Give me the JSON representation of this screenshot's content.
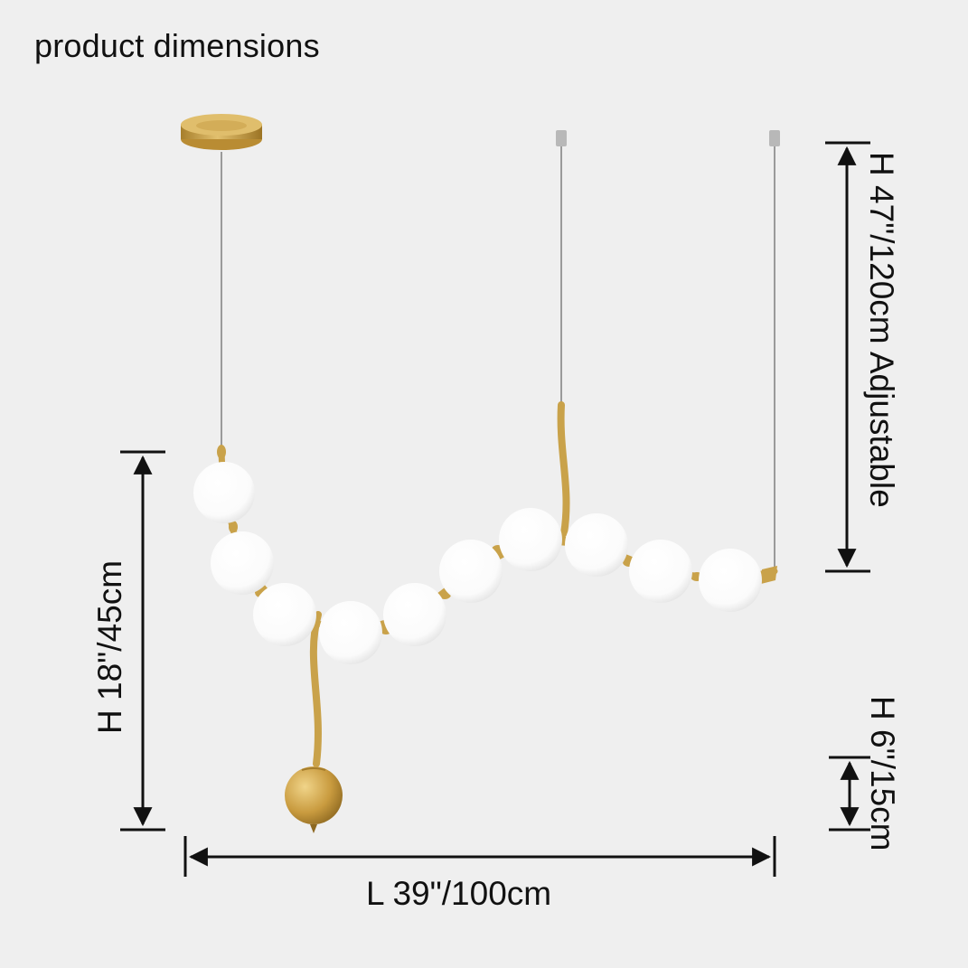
{
  "title": "product dimensions",
  "dimensions": {
    "overall_height": "H 47\"/120cm Adjustable",
    "body_height": "H 18\"/45cm",
    "pendant_height": "H 6\"/15cm",
    "length": "L 39\"/100cm"
  },
  "colors": {
    "background": "#efefef",
    "brass": "#c9a24a",
    "globe": "#ffffff",
    "arrow": "#111111",
    "wire": "#9a9a9a"
  }
}
